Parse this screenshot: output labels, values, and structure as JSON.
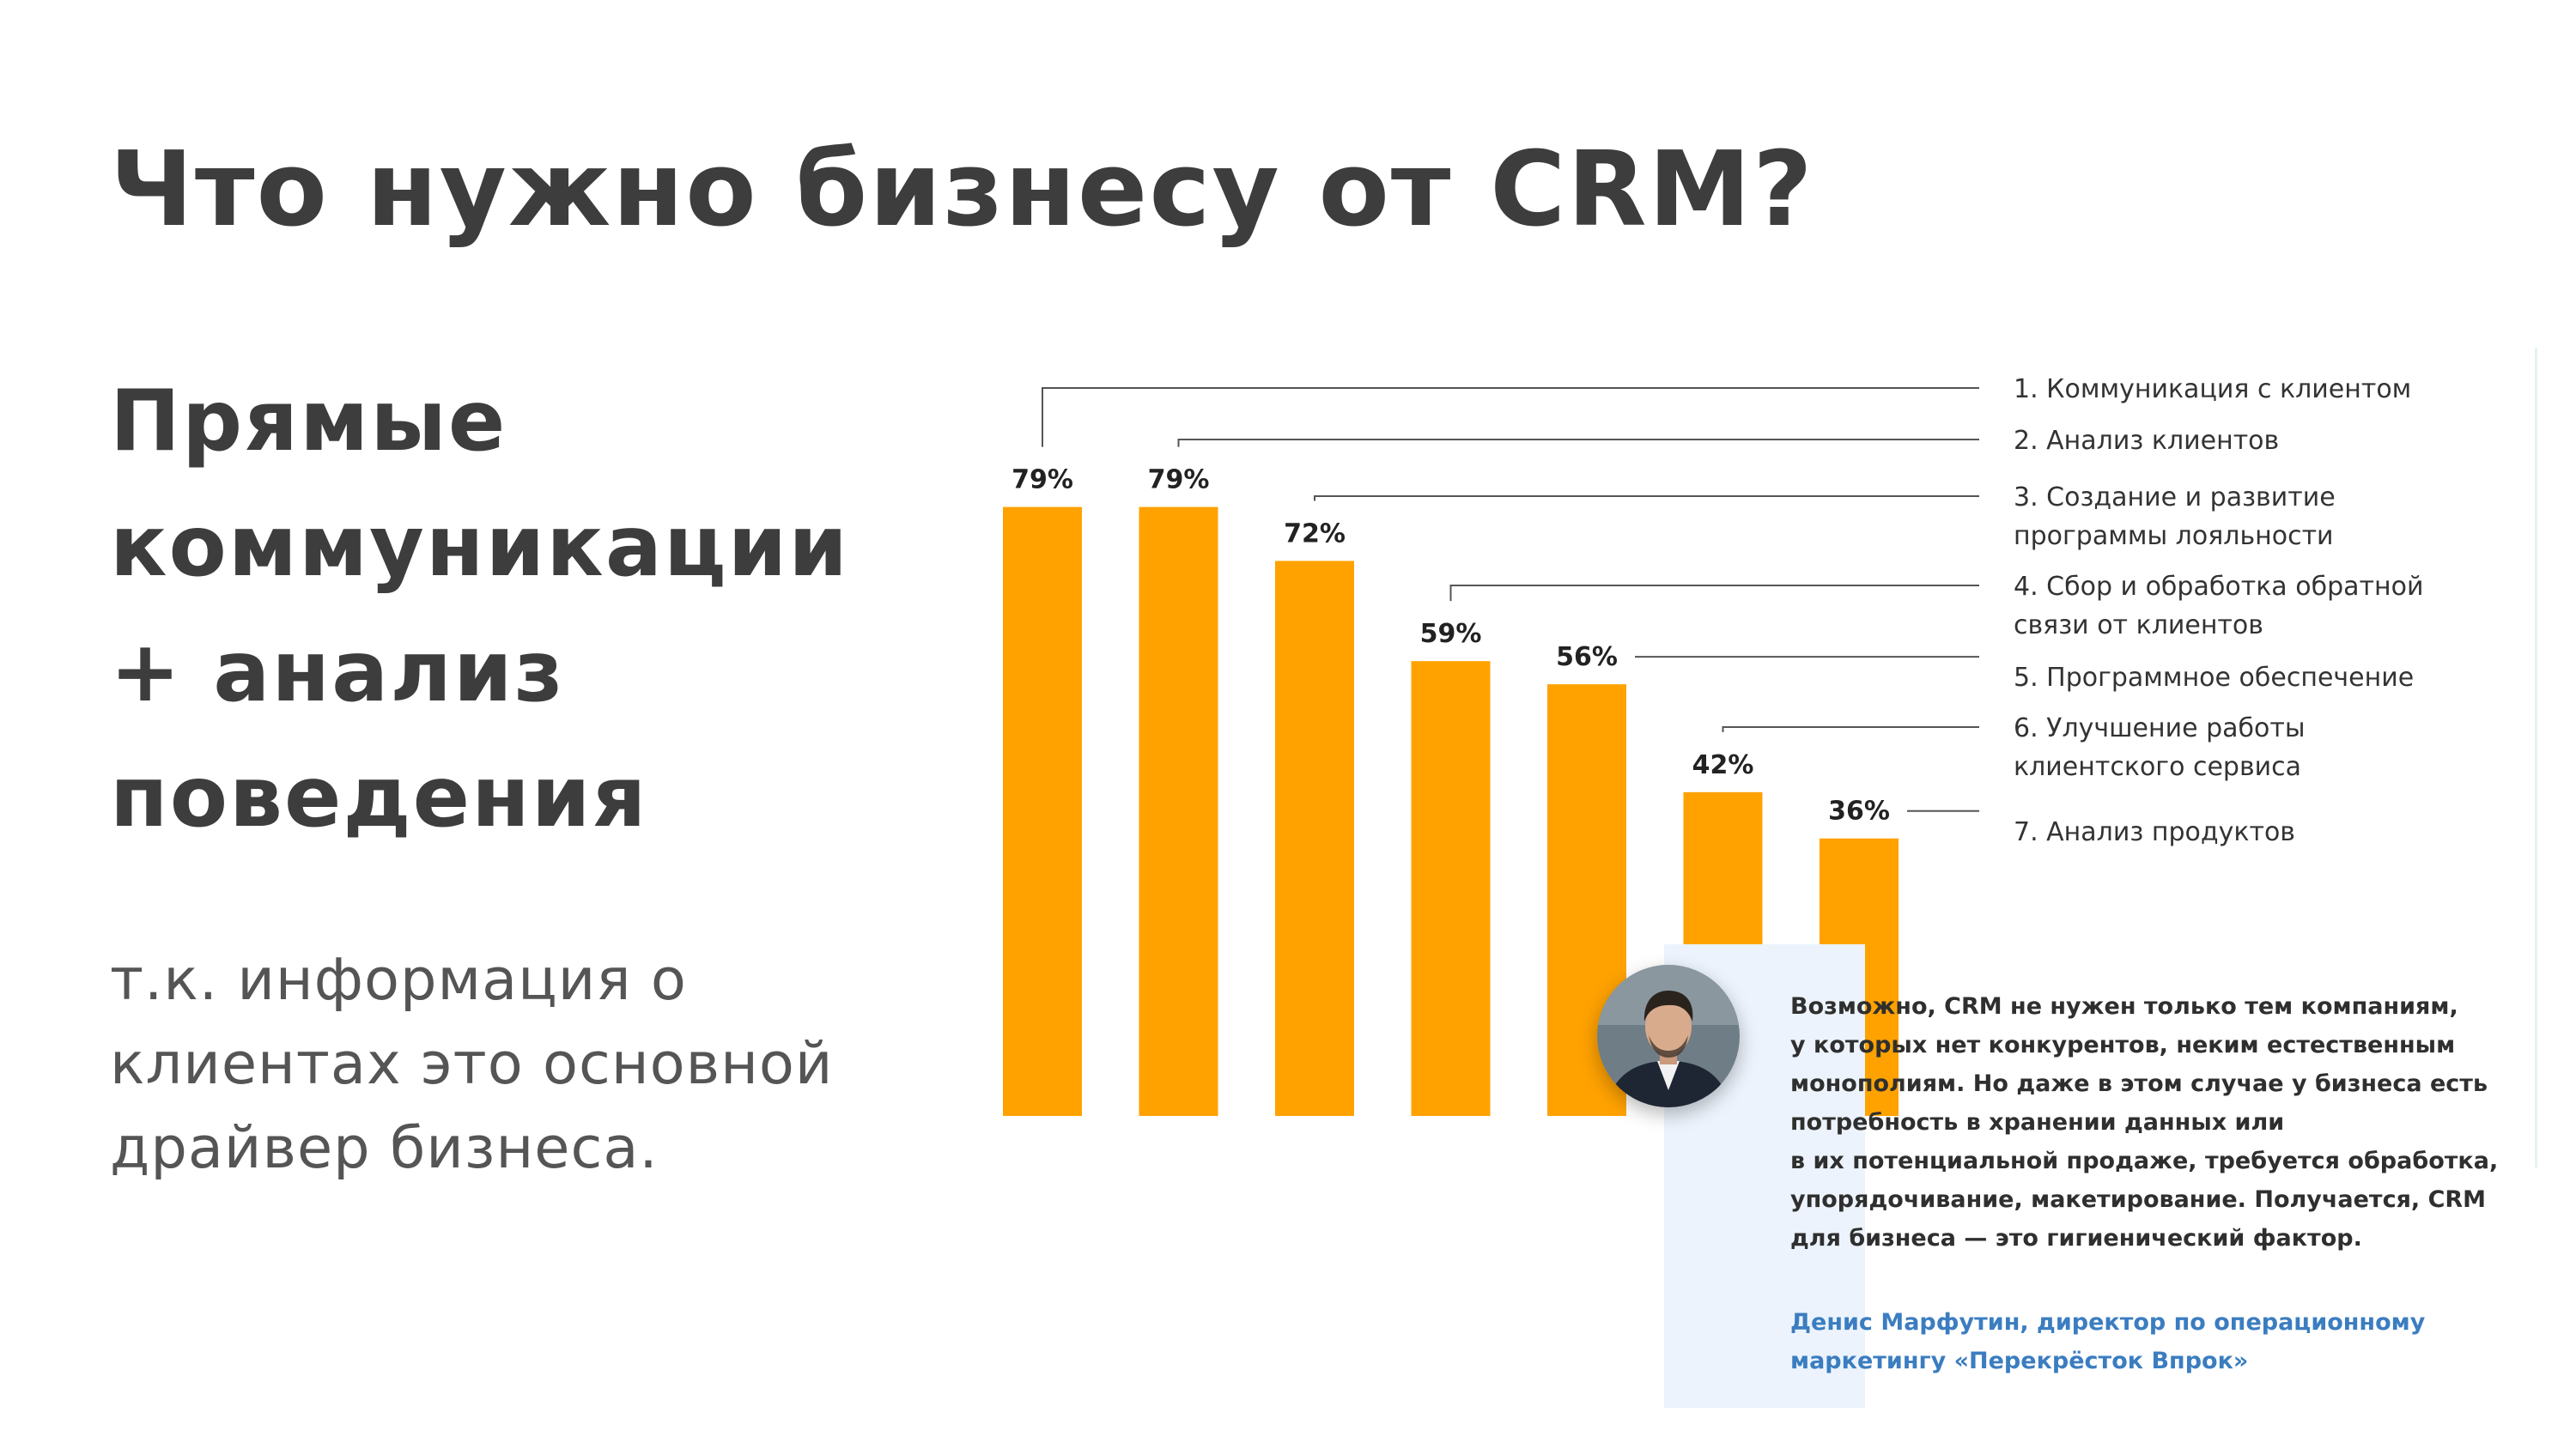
{
  "slide": {
    "title": "Что нужно бизнесу от CRM?",
    "subtitle_lines": [
      "Прямые",
      "коммуникации",
      "+ анализ",
      "поведения"
    ],
    "note_lines": [
      "т.к. информация о",
      "клиентах это основной",
      "драйвер бизнеса."
    ]
  },
  "chart_data": {
    "type": "bar",
    "categories": [
      "1. Коммуникация с клиентом",
      "2. Анализ клиентов",
      "3. Создание и развитие программы лояльности",
      "4. Сбор и обработка обратной связи от клиентов",
      "5. Программное обеспечение",
      "6. Улучшение работы клиентского сервиса",
      "7. Анализ продуктов"
    ],
    "category_lines": [
      [
        "1. Коммуникация с клиентом"
      ],
      [
        "2. Анализ клиентов"
      ],
      [
        "3. Создание и развитие",
        "программы лояльности"
      ],
      [
        "4. Сбор и обработка обратной",
        "связи от клиентов"
      ],
      [
        "5. Программное обеспечение"
      ],
      [
        "6. Улучшение работы",
        "клиентского сервиса"
      ],
      [
        "7. Анализ продуктов"
      ]
    ],
    "values": [
      79,
      79,
      72,
      59,
      56,
      42,
      36
    ],
    "value_labels": [
      "79%",
      "79%",
      "72%",
      "59%",
      "56%",
      "42%",
      "36%"
    ],
    "unit": "%",
    "bar_color": "#ffa200",
    "legend": "right",
    "grid": false
  },
  "quote": {
    "lines": [
      "Возможно, CRM не нужен только тем компаниям,",
      "у которых нет конкурентов, неким естественным",
      "монополиям. Но даже в этом случае у бизнеса есть",
      "потребность в хранении данных или",
      "в их потенциальной продаже, требуется обработка,",
      "упорядочивание, макетирование. Получается, CRM",
      "для бизнеса — это гигиенический фактор."
    ],
    "author_lines": [
      "Денис Марфутин, директор по операционному",
      "маркетингу «Перекрёсток Впрок»"
    ],
    "author_color": "#3b7dc0"
  }
}
